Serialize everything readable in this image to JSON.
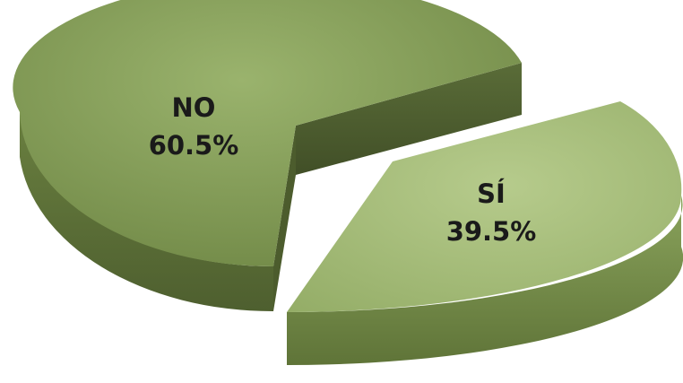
{
  "chart_data": {
    "type": "pie",
    "title": "",
    "categories": [
      "NO",
      "SÍ"
    ],
    "values": [
      60.5,
      39.5
    ],
    "value_labels": [
      "60.5%",
      "39.5%"
    ],
    "exploded": [
      "SÍ"
    ],
    "style": "3d",
    "legend": "none"
  },
  "colors": {
    "no_top": "#8aa05f",
    "no_side": "#5c6e3a",
    "si_top": "#a9bf7f",
    "si_side": "#7a9150",
    "background": "#ffffff"
  }
}
